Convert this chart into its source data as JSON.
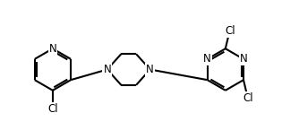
{
  "bg_color": "#ffffff",
  "bond_color": "#000000",
  "text_color": "#000000",
  "line_width": 1.5,
  "font_size": 8.5,
  "figsize": [
    3.34,
    1.55
  ],
  "dpi": 100,
  "xlim": [
    0,
    10
  ],
  "ylim": [
    0,
    4.6
  ]
}
